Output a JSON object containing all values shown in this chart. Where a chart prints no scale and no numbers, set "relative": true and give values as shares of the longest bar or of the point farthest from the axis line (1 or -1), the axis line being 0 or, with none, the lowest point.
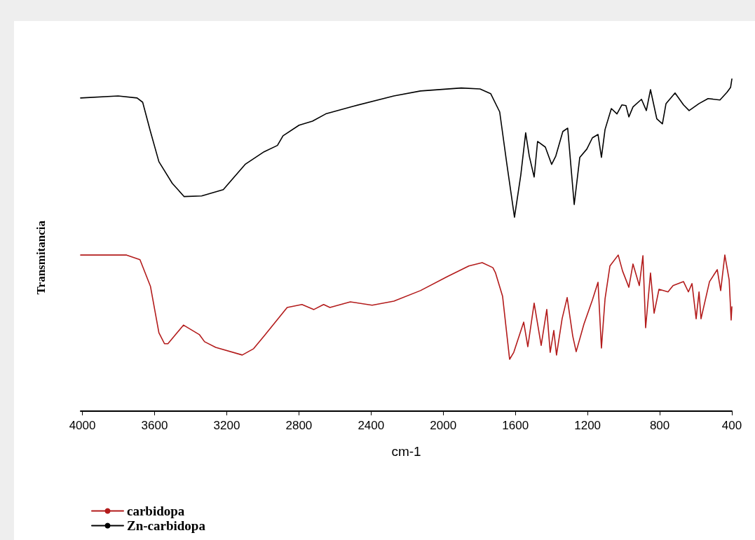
{
  "chart_data": {
    "type": "line",
    "relative": true,
    "xlabel": "cm-1",
    "ylabel": "Transmitancia",
    "xlim": [
      4010,
      400
    ],
    "xticks": [
      4000,
      3600,
      3200,
      2800,
      2400,
      2000,
      1600,
      1200,
      800,
      400
    ],
    "grid": false,
    "legend": "bottom left",
    "marker": "none",
    "line_style": "solid",
    "series": [
      {
        "name": "carbidopa",
        "color": "#b31b1b",
        "x": [
          4010,
          3755,
          3681,
          3623,
          3576,
          3545,
          3526,
          3440,
          3351,
          3323,
          3261,
          3114,
          3051,
          2993,
          2865,
          2783,
          2717,
          2663,
          2628,
          2515,
          2394,
          2274,
          2126,
          1978,
          1858,
          1784,
          1725,
          1710,
          1671,
          1632,
          1609,
          1554,
          1531,
          1496,
          1457,
          1426,
          1407,
          1387,
          1372,
          1341,
          1313,
          1282,
          1263,
          1220,
          1173,
          1142,
          1123,
          1103,
          1076,
          1030,
          1006,
          971,
          948,
          913,
          893,
          878,
          851,
          831,
          804,
          754,
          726,
          668,
          641,
          621,
          598,
          582,
          571,
          524,
          481,
          462,
          439,
          415,
          404,
          400
        ],
        "values": [
          0.47,
          0.47,
          0.456,
          0.376,
          0.236,
          0.203,
          0.203,
          0.259,
          0.23,
          0.209,
          0.192,
          0.169,
          0.188,
          0.226,
          0.312,
          0.321,
          0.306,
          0.321,
          0.312,
          0.329,
          0.319,
          0.331,
          0.363,
          0.405,
          0.437,
          0.447,
          0.432,
          0.416,
          0.346,
          0.156,
          0.177,
          0.268,
          0.194,
          0.325,
          0.198,
          0.306,
          0.177,
          0.243,
          0.169,
          0.278,
          0.342,
          0.226,
          0.179,
          0.262,
          0.335,
          0.388,
          0.19,
          0.338,
          0.437,
          0.47,
          0.422,
          0.373,
          0.443,
          0.378,
          0.468,
          0.251,
          0.416,
          0.295,
          0.367,
          0.359,
          0.378,
          0.39,
          0.359,
          0.384,
          0.278,
          0.359,
          0.278,
          0.39,
          0.426,
          0.363,
          0.47,
          0.395,
          0.274,
          0.314
        ]
      },
      {
        "name": "Zn-carbidopa",
        "color": "#000000",
        "x": [
          4010,
          3802,
          3697,
          3666,
          3623,
          3576,
          3502,
          3436,
          3339,
          3219,
          3098,
          2993,
          2919,
          2888,
          2799,
          2725,
          2651,
          2499,
          2274,
          2126,
          1900,
          1796,
          1737,
          1687,
          1648,
          1605,
          1570,
          1543,
          1523,
          1496,
          1477,
          1434,
          1399,
          1376,
          1337,
          1310,
          1274,
          1243,
          1204,
          1173,
          1142,
          1123,
          1103,
          1068,
          1037,
          1010,
          987,
          971,
          948,
          901,
          874,
          851,
          816,
          785,
          765,
          715,
          668,
          637,
          582,
          532,
          466,
          427,
          407,
          400
        ],
        "values": [
          0.943,
          0.949,
          0.943,
          0.93,
          0.842,
          0.751,
          0.686,
          0.646,
          0.648,
          0.667,
          0.743,
          0.781,
          0.8,
          0.829,
          0.861,
          0.873,
          0.895,
          0.918,
          0.949,
          0.964,
          0.973,
          0.97,
          0.956,
          0.901,
          0.747,
          0.584,
          0.711,
          0.838,
          0.768,
          0.705,
          0.812,
          0.795,
          0.743,
          0.768,
          0.842,
          0.852,
          0.622,
          0.764,
          0.789,
          0.823,
          0.833,
          0.764,
          0.848,
          0.911,
          0.895,
          0.922,
          0.92,
          0.886,
          0.916,
          0.939,
          0.905,
          0.968,
          0.88,
          0.865,
          0.926,
          0.958,
          0.922,
          0.905,
          0.926,
          0.941,
          0.937,
          0.96,
          0.975,
          1.0
        ]
      }
    ]
  }
}
